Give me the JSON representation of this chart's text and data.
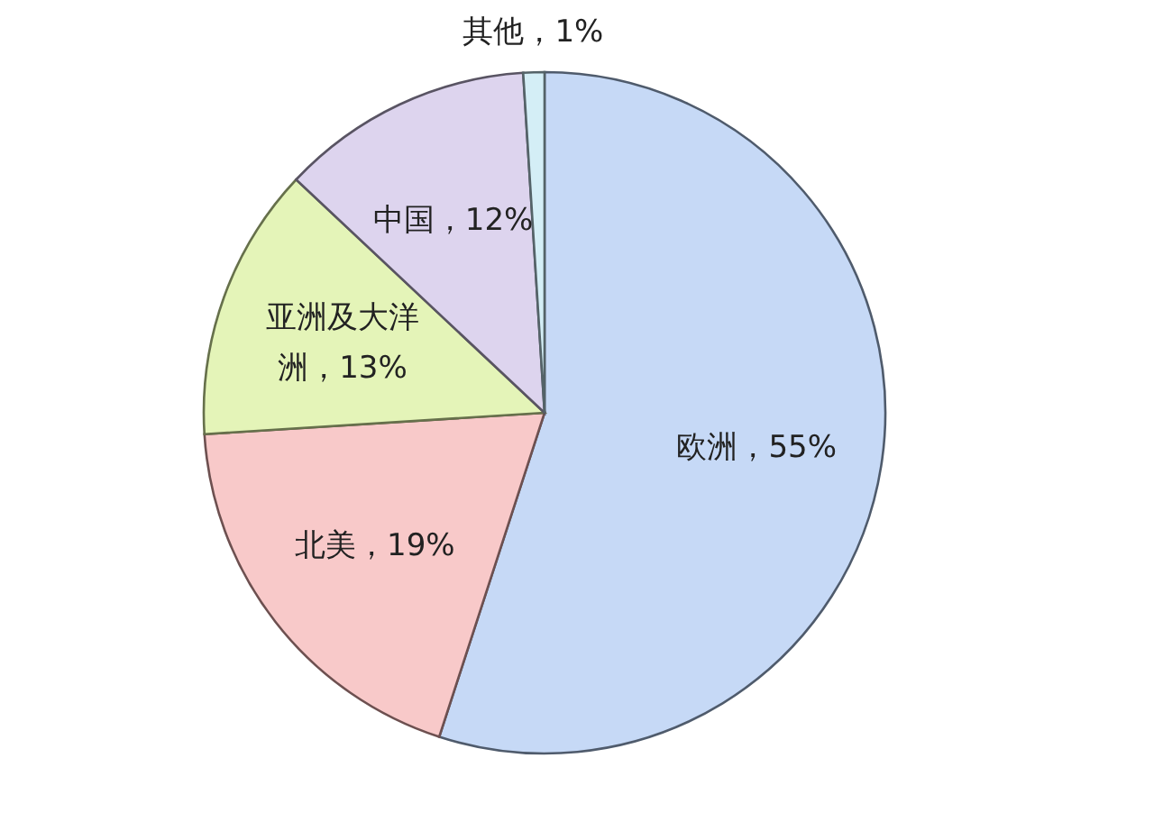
{
  "chart_data": {
    "type": "pie",
    "categories": [
      "欧洲，55%",
      "北美，19%",
      "亚洲及大洋洲，13%",
      "中国，12%",
      "其他，1%"
    ],
    "values": [
      55,
      19,
      13,
      12,
      1
    ],
    "colors": [
      "#c6d9f6",
      "#f8c9c9",
      "#e4f4b8",
      "#ddd4ee",
      "#d4eef6"
    ],
    "legend": false
  }
}
